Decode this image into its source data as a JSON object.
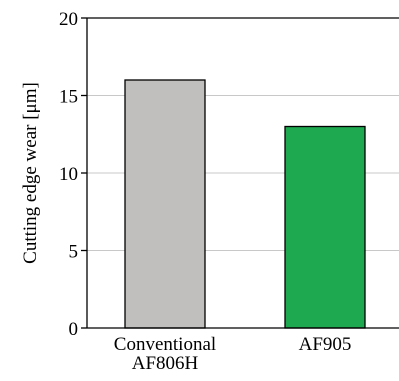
{
  "chart_data": {
    "type": "bar",
    "categories": [
      {
        "lines": [
          "Conventional",
          "AF806H"
        ]
      },
      {
        "lines": [
          "AF905"
        ]
      }
    ],
    "values": [
      16,
      13
    ],
    "bar_colors": [
      "#c0bfbd",
      "#1ea84f"
    ],
    "ylabel": "Cutting edge wear [μm]",
    "ylim": [
      0,
      20
    ],
    "yticks": [
      0,
      5,
      10,
      15,
      20
    ],
    "grid": true,
    "grid_color": "#c8c8c8"
  }
}
